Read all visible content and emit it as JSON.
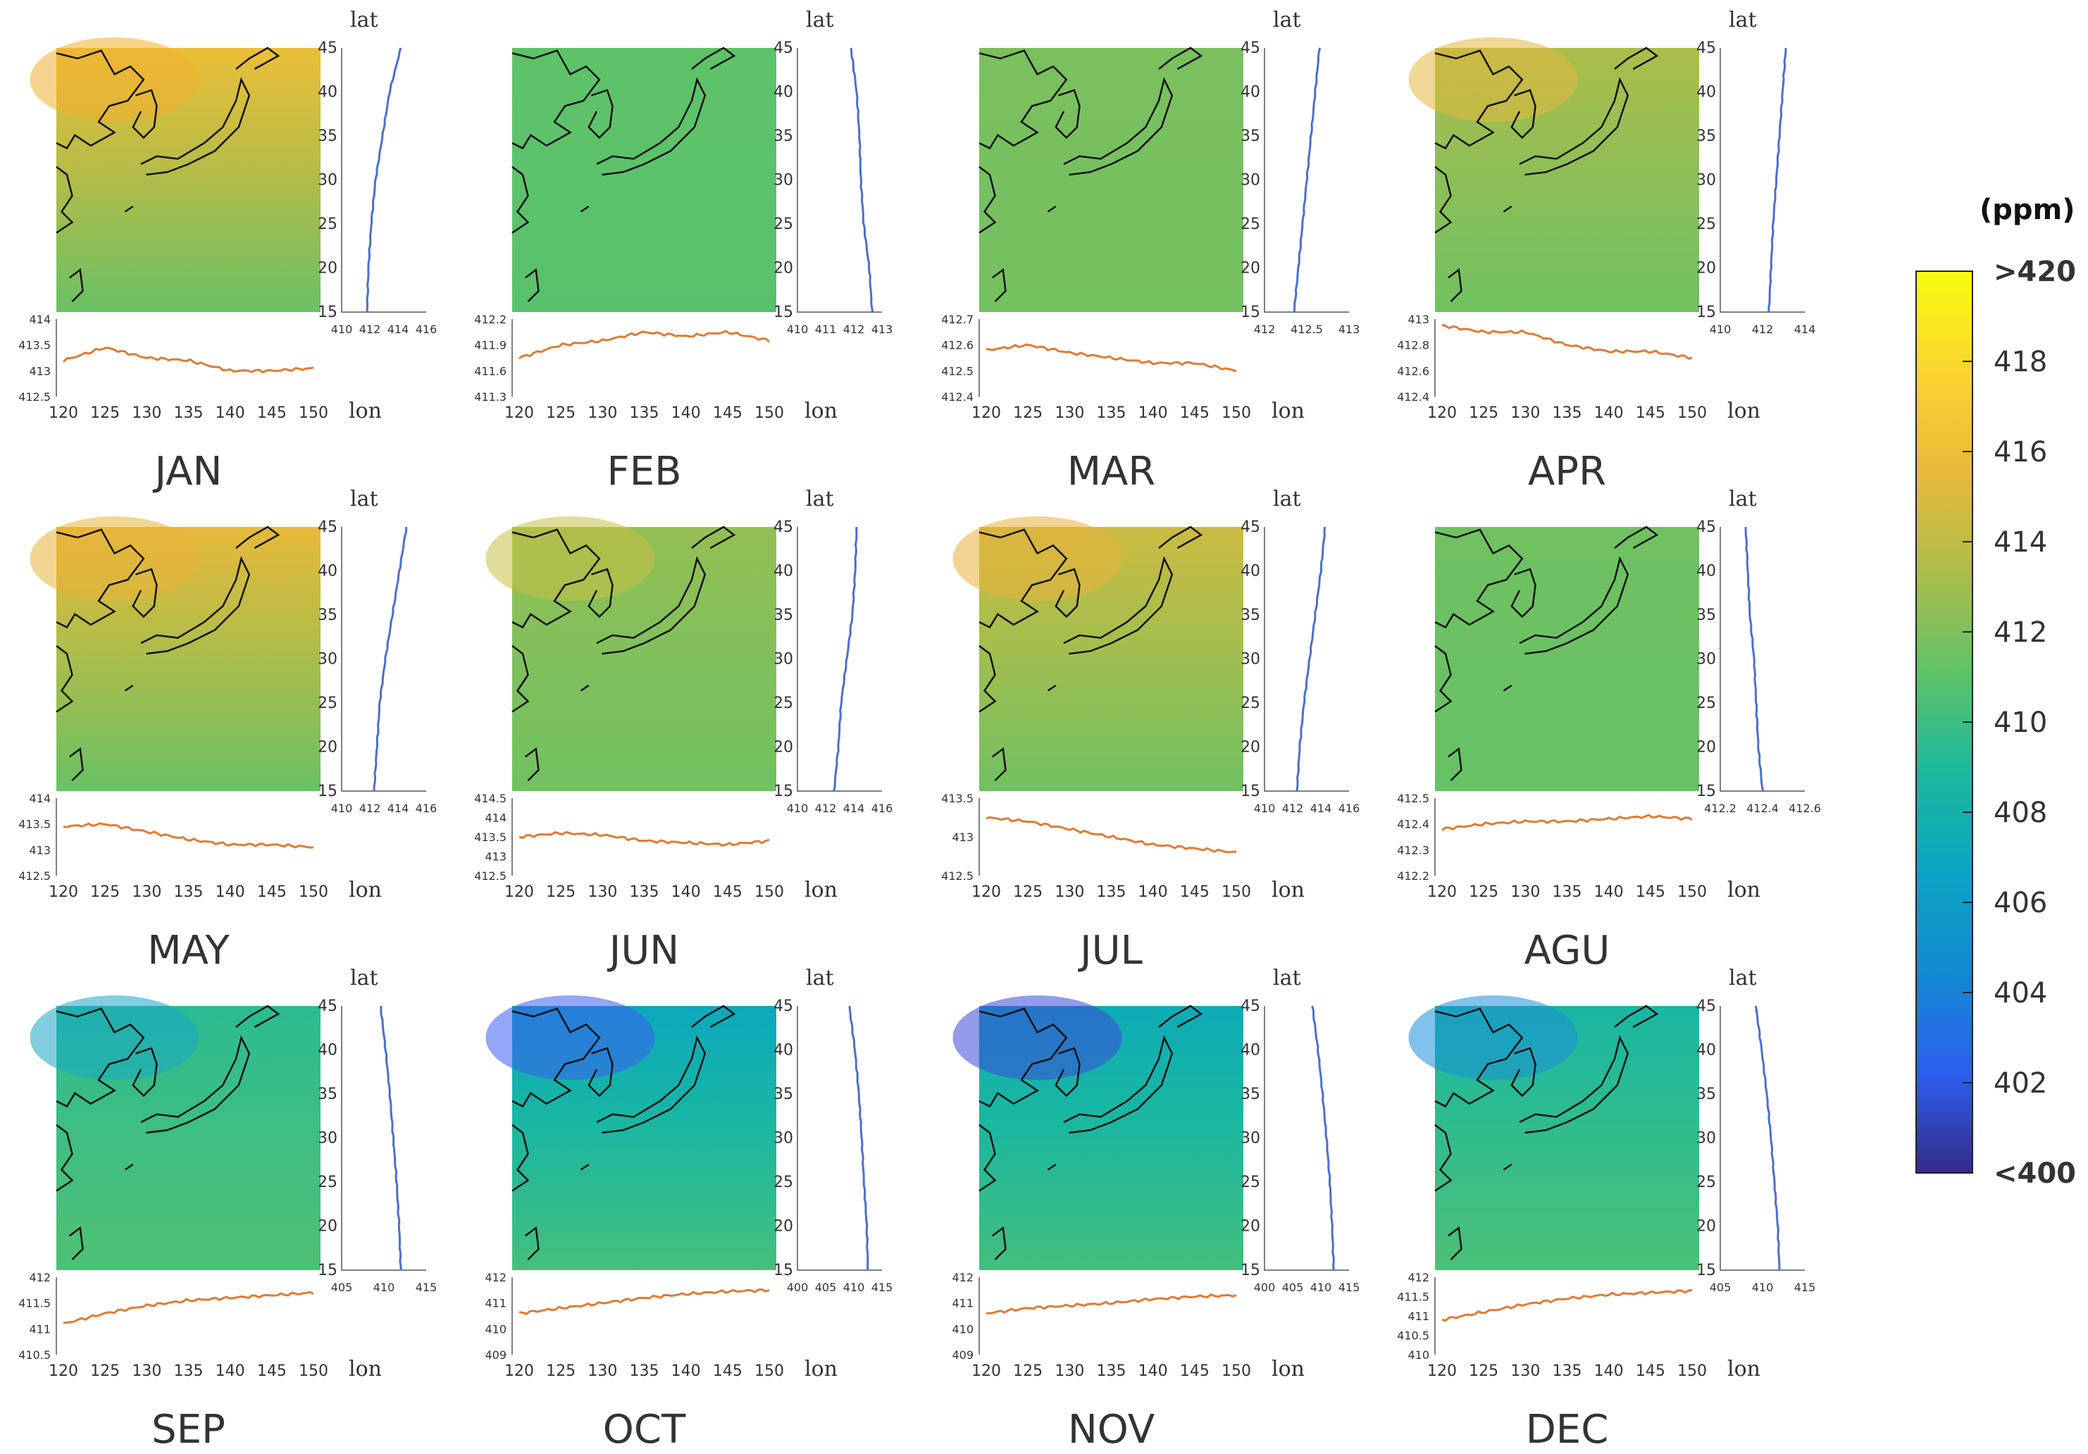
{
  "chart_data": {
    "type": "heatmap",
    "title": "",
    "xlabel": "lon",
    "ylabel": "lat",
    "lon_ticks": [
      120,
      125,
      130,
      135,
      140,
      145,
      150
    ],
    "lat_ticks": [
      15,
      20,
      25,
      30,
      35,
      40,
      45
    ],
    "colorbar": {
      "unit": "(ppm)",
      "range": [
        400,
        420
      ],
      "ticks": [
        "<400",
        "402",
        "404",
        "406",
        "408",
        "410",
        "412",
        "414",
        "416",
        "418",
        ">420"
      ],
      "colors": [
        "#352a87",
        "#2c5ff0",
        "#1389d2",
        "#0aa5c2",
        "#1bb99e",
        "#5fc268",
        "#aebd4a",
        "#e8b93a",
        "#f9d630",
        "#f9fb0e"
      ]
    },
    "panels": [
      {
        "month": "JAN",
        "base": 411.4,
        "top": 416.0,
        "patch": "#f0b030",
        "grad": 0.38,
        "lat_profile": {
          "values": [
            411.8,
            411.9,
            412.1,
            412.4,
            412.9,
            413.4,
            414.2
          ],
          "xlim": [
            410,
            416
          ],
          "xticks": [
            "410",
            "412",
            "414",
            "416"
          ]
        },
        "lon_profile": {
          "values": [
            413.2,
            413.45,
            413.25,
            413.2,
            413.0,
            413.0,
            413.05
          ],
          "ylim": [
            412.5,
            414
          ],
          "yticks": [
            "412.5",
            "413",
            "413.5",
            "414"
          ]
        }
      },
      {
        "month": "FEB",
        "base": 410.9,
        "top": 411.1,
        "patch": null,
        "grad": 0.0,
        "lat_profile": {
          "values": [
            412.65,
            412.55,
            412.35,
            412.25,
            412.2,
            412.1,
            411.9
          ],
          "xlim": [
            410,
            413
          ],
          "xticks": [
            "410",
            "411",
            "412",
            "413"
          ]
        },
        "lon_profile": {
          "values": [
            411.75,
            411.9,
            411.95,
            412.05,
            412.0,
            412.05,
            411.95
          ],
          "ylim": [
            411.3,
            412.2
          ],
          "yticks": [
            "411.3",
            "411.6",
            "411.9",
            "412.2"
          ]
        }
      },
      {
        "month": "MAR",
        "base": 411.7,
        "top": 411.9,
        "patch": null,
        "grad": 0.0,
        "lat_profile": {
          "values": [
            412.35,
            412.4,
            412.45,
            412.5,
            412.55,
            412.6,
            412.65
          ],
          "xlim": [
            412,
            413
          ],
          "xticks": [
            "412",
            "412.5",
            "413"
          ]
        },
        "lon_profile": {
          "values": [
            412.58,
            412.6,
            412.57,
            412.55,
            412.53,
            412.53,
            412.5
          ],
          "ylim": [
            412.4,
            412.7
          ],
          "yticks": [
            "412.4",
            "412.5",
            "412.6",
            "412.7"
          ]
        }
      },
      {
        "month": "APR",
        "base": 411.6,
        "top": 413.3,
        "patch": "#e2b840",
        "grad": 0.18,
        "lat_profile": {
          "values": [
            412.3,
            412.4,
            412.5,
            412.65,
            412.8,
            412.95,
            413.1
          ],
          "xlim": [
            410,
            414
          ],
          "xticks": [
            "410",
            "412",
            "414"
          ]
        },
        "lon_profile": {
          "values": [
            412.95,
            412.9,
            412.9,
            412.8,
            412.75,
            412.75,
            412.7
          ],
          "ylim": [
            412.4,
            413.0
          ],
          "yticks": [
            "412.4",
            "412.6",
            "412.8",
            "413"
          ]
        }
      },
      {
        "month": "MAY",
        "base": 411.4,
        "top": 415.5,
        "patch": "#e9b23a",
        "grad": 0.35,
        "lat_profile": {
          "values": [
            412.3,
            412.5,
            412.7,
            413.1,
            413.6,
            414.1,
            414.6
          ],
          "xlim": [
            410,
            416
          ],
          "xticks": [
            "410",
            "412",
            "414",
            "416"
          ]
        },
        "lon_profile": {
          "values": [
            413.45,
            413.5,
            413.35,
            413.2,
            413.1,
            413.1,
            413.05
          ],
          "ylim": [
            412.5,
            414
          ],
          "yticks": [
            "412.5",
            "413",
            "413.5",
            "414"
          ]
        }
      },
      {
        "month": "JUN",
        "base": 411.6,
        "top": 412.6,
        "patch": "#c8bf45",
        "grad": 0.12,
        "lat_profile": {
          "values": [
            412.6,
            412.9,
            413.1,
            413.5,
            413.9,
            414.1,
            414.2
          ],
          "xlim": [
            410,
            416
          ],
          "xticks": [
            "410",
            "412",
            "414",
            "416"
          ]
        },
        "lon_profile": {
          "values": [
            413.5,
            413.6,
            413.55,
            413.4,
            413.35,
            413.3,
            413.4
          ],
          "ylim": [
            412.5,
            414.5
          ],
          "yticks": [
            "412.5",
            "413",
            "413.5",
            "414",
            "414.5"
          ]
        }
      },
      {
        "month": "JUL",
        "base": 411.6,
        "top": 414.5,
        "patch": "#e8b23c",
        "grad": 0.28,
        "lat_profile": {
          "values": [
            412.3,
            412.5,
            412.8,
            413.2,
            413.6,
            414.0,
            414.3
          ],
          "xlim": [
            410,
            416
          ],
          "xticks": [
            "410",
            "412",
            "414",
            "416"
          ]
        },
        "lon_profile": {
          "values": [
            413.25,
            413.2,
            413.1,
            413.0,
            412.9,
            412.85,
            412.8
          ],
          "ylim": [
            412.5,
            413.5
          ],
          "yticks": [
            "412.5",
            "413",
            "413.5"
          ]
        }
      },
      {
        "month": "AGU",
        "base": 411.3,
        "top": 411.6,
        "patch": null,
        "grad": 0.0,
        "lat_profile": {
          "values": [
            412.4,
            412.38,
            412.37,
            412.36,
            412.34,
            412.33,
            412.32
          ],
          "xlim": [
            412.2,
            412.6
          ],
          "xticks": [
            "412.2",
            "412.4",
            "412.6"
          ]
        },
        "lon_profile": {
          "values": [
            412.38,
            412.4,
            412.41,
            412.41,
            412.42,
            412.43,
            412.42
          ],
          "ylim": [
            412.2,
            412.5
          ],
          "yticks": [
            "412.2",
            "412.3",
            "412.4",
            "412.5"
          ]
        }
      },
      {
        "month": "SEP",
        "base": 410.6,
        "top": 409.4,
        "patch": "#1aa8c6",
        "grad": 0.1,
        "lat_profile": {
          "values": [
            412.0,
            411.8,
            411.5,
            411.1,
            410.7,
            410.2,
            409.6
          ],
          "xlim": [
            405,
            415
          ],
          "xticks": [
            "405",
            "410",
            "415"
          ]
        },
        "lon_profile": {
          "values": [
            411.1,
            411.3,
            411.45,
            411.55,
            411.6,
            411.65,
            411.7
          ],
          "ylim": [
            410.5,
            412
          ],
          "yticks": [
            "410.5",
            "411",
            "411.5",
            "412"
          ]
        }
      },
      {
        "month": "OCT",
        "base": 410.3,
        "top": 407.0,
        "patch": "#3b5df0",
        "grad": 0.15,
        "lat_profile": {
          "values": [
            412.5,
            412.3,
            411.8,
            411.4,
            410.9,
            410.2,
            409.2
          ],
          "xlim": [
            400,
            415
          ],
          "xticks": [
            "400",
            "405",
            "410",
            "415"
          ]
        },
        "lon_profile": {
          "values": [
            410.6,
            410.8,
            411.0,
            411.2,
            411.35,
            411.45,
            411.5
          ],
          "ylim": [
            409,
            412
          ],
          "yticks": [
            "409",
            "410",
            "411",
            "412"
          ]
        }
      },
      {
        "month": "NOV",
        "base": 410.2,
        "top": 407.3,
        "patch": "#3a48d8",
        "grad": 0.15,
        "lat_profile": {
          "values": [
            412.3,
            412.0,
            411.6,
            411.0,
            410.3,
            409.5,
            408.5
          ],
          "xlim": [
            400,
            415
          ],
          "xticks": [
            "400",
            "405",
            "410",
            "415"
          ]
        },
        "lon_profile": {
          "values": [
            410.6,
            410.8,
            410.9,
            411.0,
            411.15,
            411.25,
            411.3
          ],
          "ylim": [
            409,
            412
          ],
          "yticks": [
            "409",
            "410",
            "411",
            "412"
          ]
        }
      },
      {
        "month": "DEC",
        "base": 410.5,
        "top": 408.6,
        "patch": "#1c8fd8",
        "grad": 0.12,
        "lat_profile": {
          "values": [
            412.0,
            411.8,
            411.4,
            411.0,
            410.5,
            409.9,
            409.2
          ],
          "xlim": [
            405,
            415
          ],
          "xticks": [
            "405",
            "410",
            "415"
          ]
        },
        "lon_profile": {
          "values": [
            410.9,
            411.1,
            411.3,
            411.45,
            411.55,
            411.6,
            411.65
          ],
          "ylim": [
            410,
            412
          ],
          "yticks": [
            "410",
            "410.5",
            "411",
            "411.5",
            "412"
          ]
        }
      }
    ]
  }
}
